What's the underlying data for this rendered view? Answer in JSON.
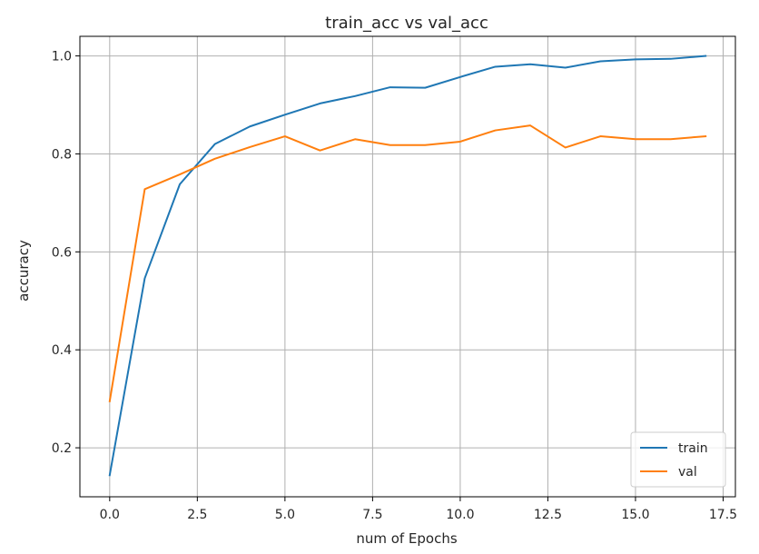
{
  "chart_data": {
    "type": "line",
    "title": "train_acc vs val_acc",
    "xlabel": "num of Epochs",
    "ylabel": "accuracy",
    "xlim": [
      -0.85,
      17.85
    ],
    "ylim": [
      0.1,
      1.04
    ],
    "xticks": [
      0.0,
      2.5,
      5.0,
      7.5,
      10.0,
      12.5,
      15.0,
      17.5
    ],
    "xtick_labels": [
      "0.0",
      "2.5",
      "5.0",
      "7.5",
      "10.0",
      "12.5",
      "15.0",
      "17.5"
    ],
    "yticks": [
      0.2,
      0.4,
      0.6,
      0.8,
      1.0
    ],
    "ytick_labels": [
      "0.2",
      "0.4",
      "0.6",
      "0.8",
      "1.0"
    ],
    "grid": true,
    "legend_position": "lower-right",
    "x": [
      0,
      1,
      2,
      3,
      4,
      5,
      6,
      7,
      8,
      9,
      10,
      11,
      12,
      13,
      14,
      15,
      16,
      17
    ],
    "series": [
      {
        "name": "train",
        "color": "#1f77b4",
        "values": [
          0.144,
          0.546,
          0.738,
          0.82,
          0.856,
          0.88,
          0.903,
          0.918,
          0.936,
          0.935,
          0.957,
          0.978,
          0.983,
          0.976,
          0.989,
          0.993,
          0.994,
          1.0
        ]
      },
      {
        "name": "val",
        "color": "#ff7f0e",
        "values": [
          0.295,
          0.728,
          0.758,
          0.79,
          0.814,
          0.836,
          0.807,
          0.83,
          0.818,
          0.818,
          0.825,
          0.848,
          0.858,
          0.813,
          0.836,
          0.83,
          0.83,
          0.836
        ]
      }
    ]
  }
}
